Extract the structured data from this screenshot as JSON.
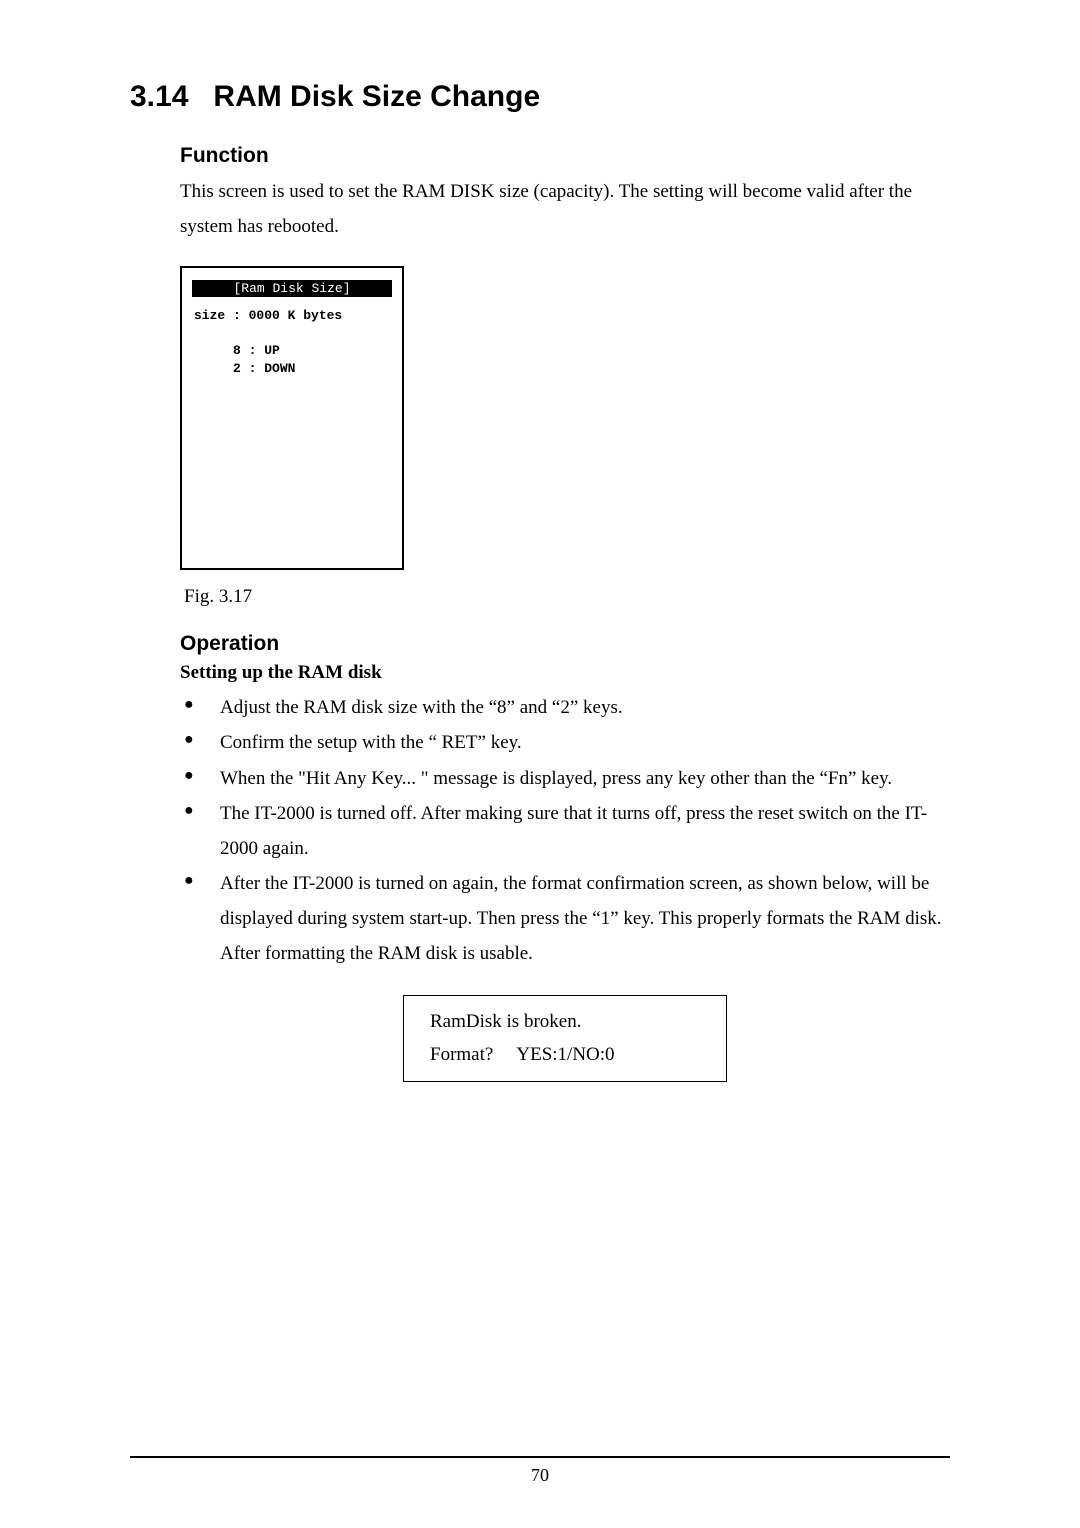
{
  "section": {
    "number": "3.14",
    "title": "RAM Disk Size Change"
  },
  "function": {
    "heading": "Function",
    "body": "This screen is used to set the RAM DISK size (capacity). The setting will become valid after the system has rebooted."
  },
  "screenshot": {
    "title_bar": "[Ram Disk Size]",
    "line_size": "size : 0000 K bytes",
    "line_up": "     8 : UP",
    "line_down": "     2 : DOWN",
    "border_color": "#000000",
    "background_color": "#ffffff",
    "title_bg": "#000000",
    "title_fg": "#ffffff",
    "font_family": "Courier New",
    "font_size_pt": 9
  },
  "fig_caption": "Fig. 3.17",
  "operation": {
    "heading": "Operation",
    "setting_title": "Setting up the RAM disk",
    "bullets": [
      "Adjust the RAM disk size with the “8” and “2” keys.",
      "Confirm the setup with the “ RET” key.",
      "When the \"Hit Any Key... \" message is displayed, press any key other than the “Fn” key.",
      "The IT-2000 is turned off. After making sure that it turns off, press the reset switch on the IT-2000 again.",
      "After the IT-2000 is turned on again, the format confirmation screen, as shown below, will be displayed during system start-up. Then press the “1” key. This properly formats the RAM disk. After formatting the RAM disk is usable."
    ]
  },
  "dialog": {
    "line1": "RamDisk is broken.",
    "line2": "Format?  YES:1/NO:0"
  },
  "page_number": "70",
  "colors": {
    "page_bg": "#ffffff",
    "text": "#000000",
    "rule": "#000000"
  },
  "typography": {
    "body_font": "Times New Roman",
    "heading_font": "Arial",
    "mono_font": "Courier New",
    "h1_size_pt": 22,
    "h2_size_pt": 16,
    "body_size_pt": 14
  }
}
